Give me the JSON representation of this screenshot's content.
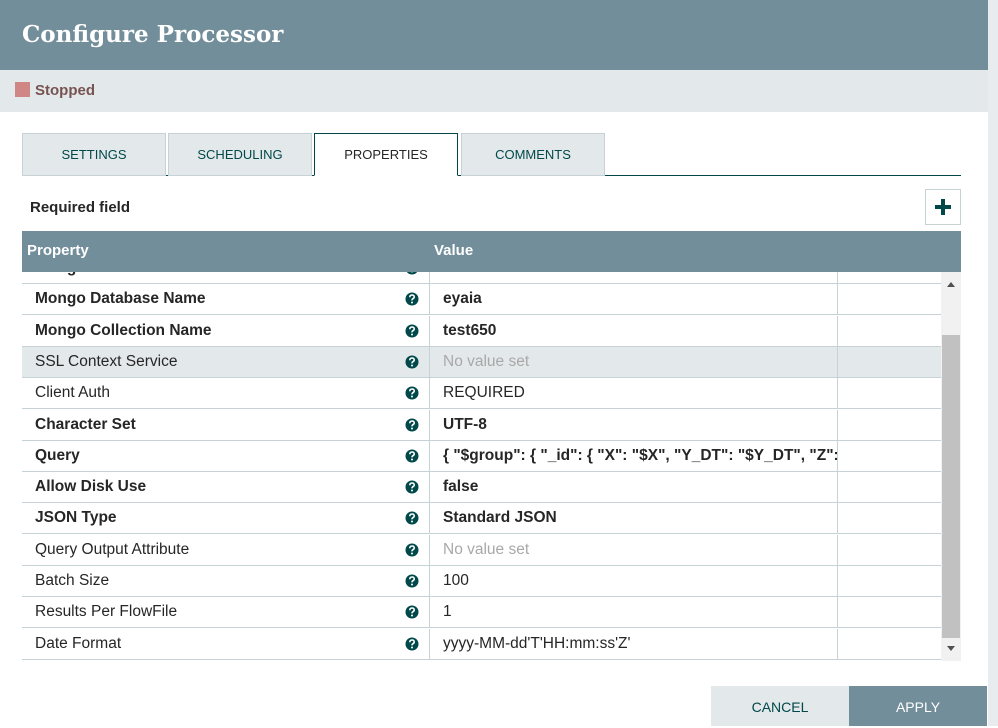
{
  "dialog": {
    "title": "Configure Processor",
    "status": "Stopped",
    "tabs": [
      {
        "label": "SETTINGS",
        "active": false
      },
      {
        "label": "SCHEDULING",
        "active": false
      },
      {
        "label": "PROPERTIES",
        "active": true
      },
      {
        "label": "COMMENTS",
        "active": false
      }
    ],
    "required_note": "Required field",
    "table": {
      "headers": [
        "Property",
        "Value"
      ],
      "rows": [
        {
          "property": "Mongo URI",
          "value": "",
          "required": true,
          "set": true,
          "highlight": false
        },
        {
          "property": "Mongo Database Name",
          "value": "eyaia",
          "required": true,
          "set": true,
          "highlight": false
        },
        {
          "property": "Mongo Collection Name",
          "value": "test650",
          "required": true,
          "set": true,
          "highlight": false
        },
        {
          "property": "SSL Context Service",
          "value": "No value set",
          "required": false,
          "set": false,
          "highlight": true
        },
        {
          "property": "Client Auth",
          "value": "REQUIRED",
          "required": false,
          "set": true,
          "highlight": false
        },
        {
          "property": "Character Set",
          "value": "UTF-8",
          "required": true,
          "set": true,
          "highlight": false
        },
        {
          "property": "Query",
          "value": "{ \"$group\": { \"_id\": { \"X\": \"$X\", \"Y_DT\": \"$Y_DT\", \"Z\": \"$Z\" }...",
          "required": true,
          "set": true,
          "highlight": false
        },
        {
          "property": "Allow Disk Use",
          "value": "false",
          "required": true,
          "set": true,
          "highlight": false
        },
        {
          "property": "JSON Type",
          "value": "Standard JSON",
          "required": true,
          "set": true,
          "highlight": false
        },
        {
          "property": "Query Output Attribute",
          "value": "No value set",
          "required": false,
          "set": false,
          "highlight": false
        },
        {
          "property": "Batch Size",
          "value": "100",
          "required": false,
          "set": true,
          "highlight": false
        },
        {
          "property": "Results Per FlowFile",
          "value": "1",
          "required": false,
          "set": true,
          "highlight": false
        },
        {
          "property": "Date Format",
          "value": "yyyy-MM-dd'T'HH:mm:ss'Z'",
          "required": false,
          "set": true,
          "highlight": false
        }
      ]
    },
    "buttons": [
      "CANCEL",
      "APPLY"
    ]
  }
}
